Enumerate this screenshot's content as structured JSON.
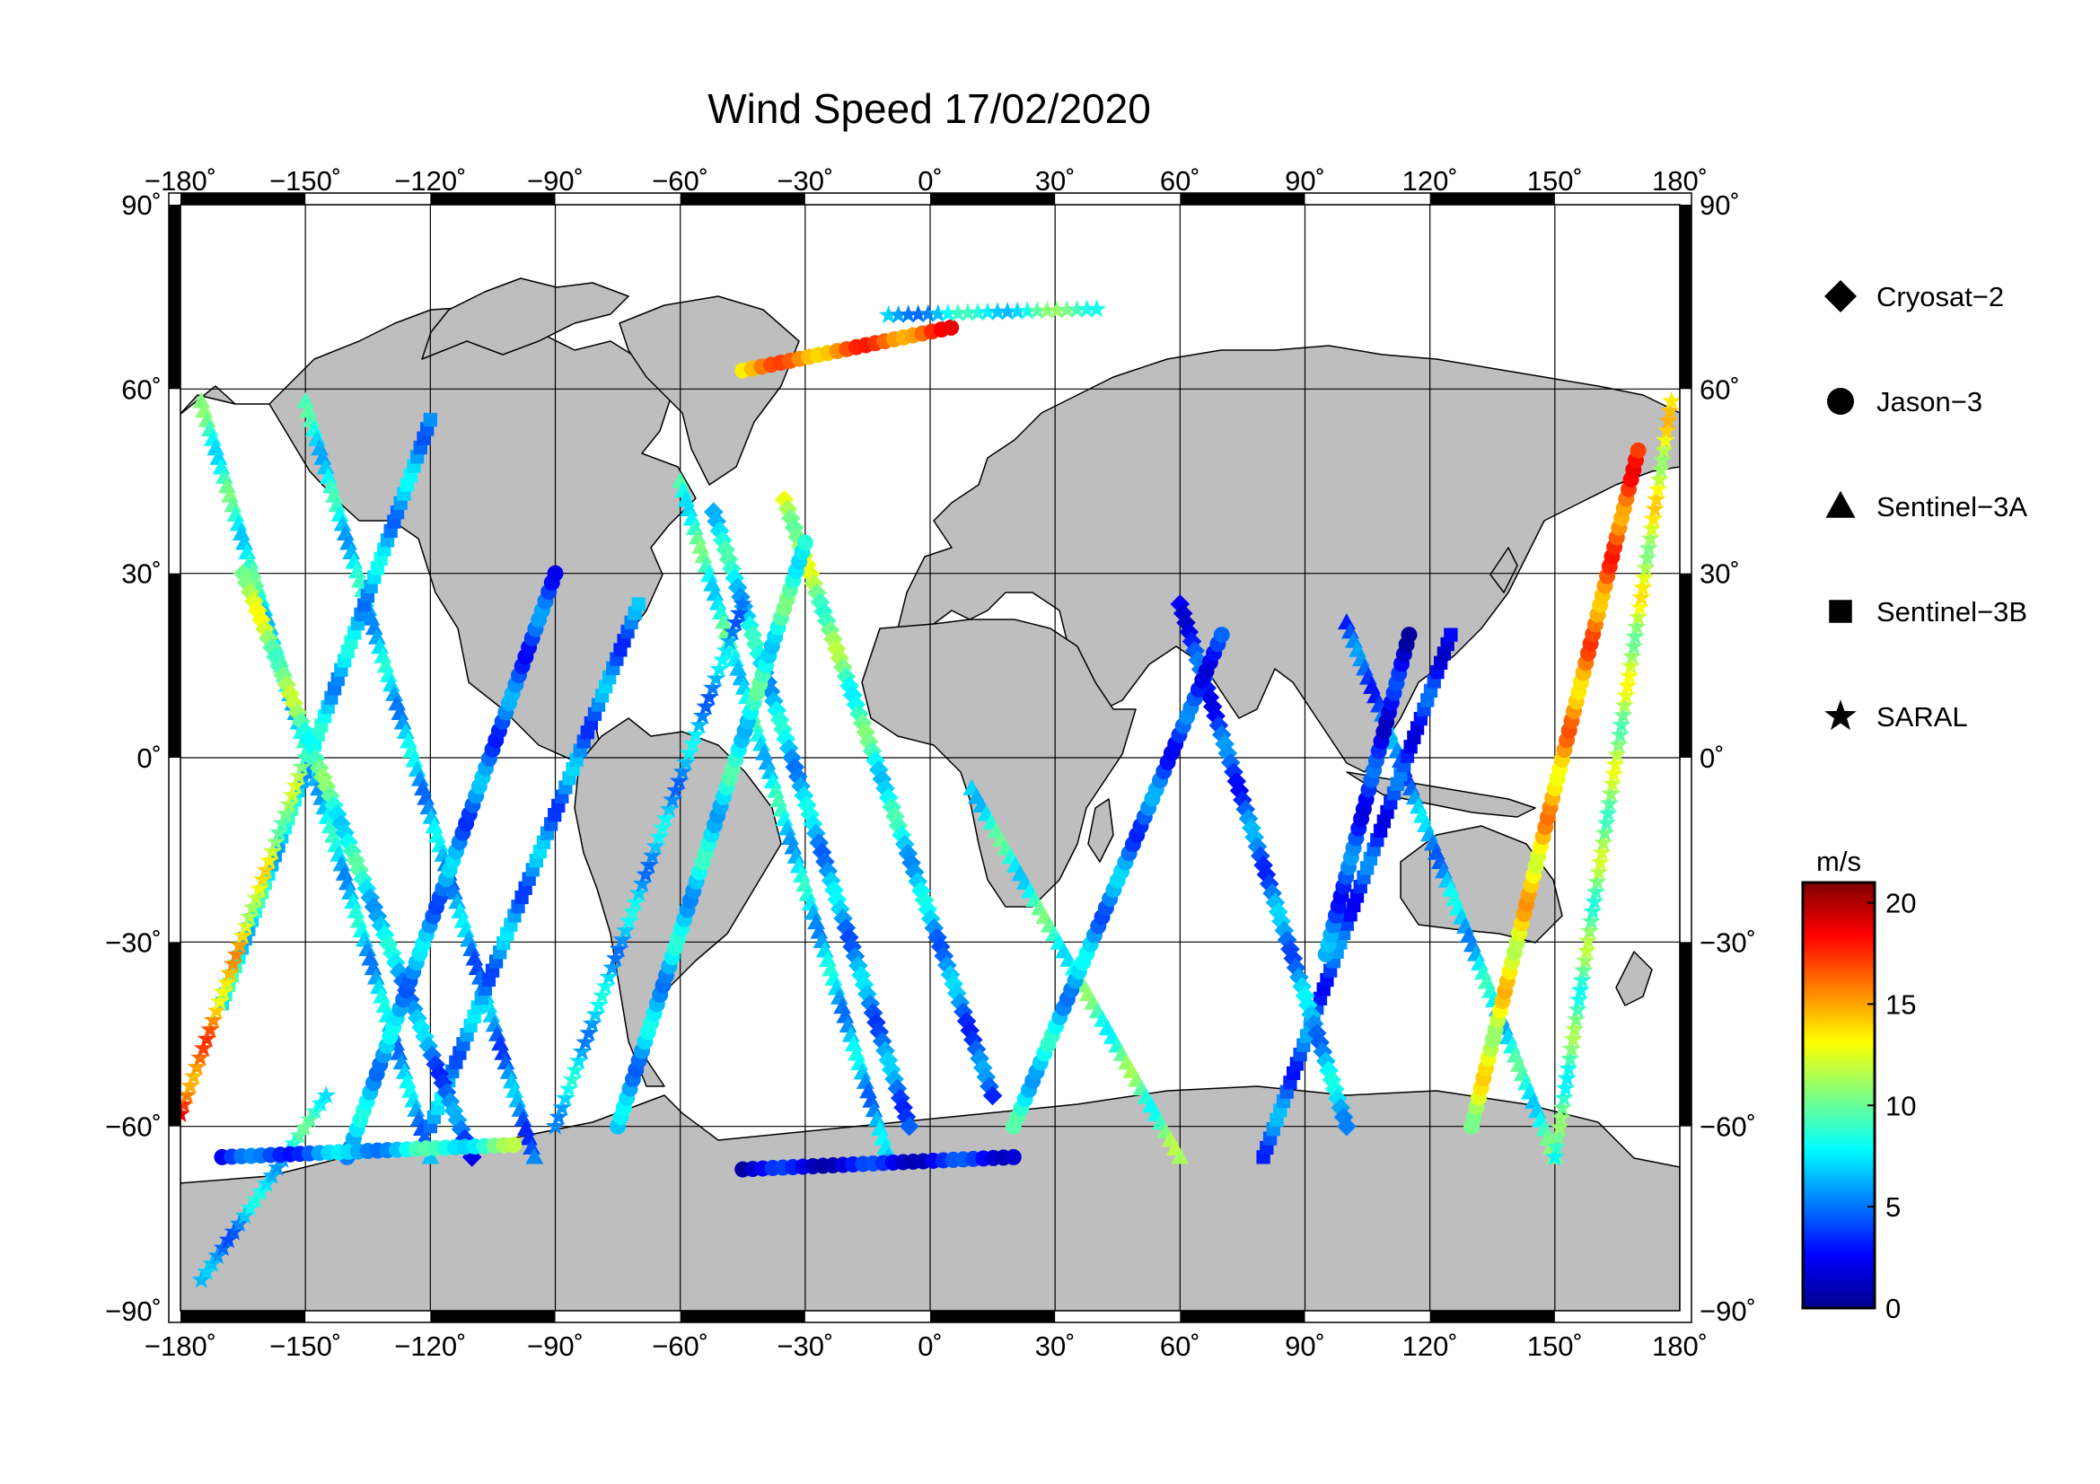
{
  "map": {
    "title": "Wind Speed 17/02/2020",
    "lon_ticks": [
      {
        "value": -180,
        "label": "−180˚"
      },
      {
        "value": -150,
        "label": "−150˚"
      },
      {
        "value": -120,
        "label": "−120˚"
      },
      {
        "value": -90,
        "label": "−90˚"
      },
      {
        "value": -60,
        "label": "−60˚"
      },
      {
        "value": -30,
        "label": "−30˚"
      },
      {
        "value": 0,
        "label": "0˚"
      },
      {
        "value": 30,
        "label": "30˚"
      },
      {
        "value": 60,
        "label": "60˚"
      },
      {
        "value": 90,
        "label": "90˚"
      },
      {
        "value": 120,
        "label": "120˚"
      },
      {
        "value": 150,
        "label": "150˚"
      },
      {
        "value": 180,
        "label": "180˚"
      }
    ],
    "lat_ticks": [
      {
        "value": 90,
        "label": "90˚"
      },
      {
        "value": 60,
        "label": "60˚"
      },
      {
        "value": 30,
        "label": "30˚"
      },
      {
        "value": 0,
        "label": "0˚"
      },
      {
        "value": -30,
        "label": "−30˚"
      },
      {
        "value": -60,
        "label": "−60˚"
      },
      {
        "value": -90,
        "label": "−90˚"
      }
    ],
    "colors": {
      "land": "#bebebe",
      "ocean": "#ffffff",
      "frame": "#000000"
    }
  },
  "legend": {
    "items": [
      {
        "label": "Cryosat−2",
        "marker": "diamond"
      },
      {
        "label": "Jason−3",
        "marker": "circle"
      },
      {
        "label": "Sentinel−3A",
        "marker": "triangle"
      },
      {
        "label": "Sentinel−3B",
        "marker": "square"
      },
      {
        "label": "SARAL",
        "marker": "star"
      }
    ]
  },
  "colorbar": {
    "unit": "m/s",
    "min": 0,
    "max": 21,
    "ticks": [
      {
        "value": 20,
        "label": "20"
      },
      {
        "value": 15,
        "label": "15"
      },
      {
        "value": 10,
        "label": "10"
      },
      {
        "value": 5,
        "label": "5"
      },
      {
        "value": 0,
        "label": "0"
      }
    ],
    "stops": [
      "#00008f",
      "#0000ff",
      "#0080ff",
      "#00ffff",
      "#80ff80",
      "#ffff00",
      "#ff8000",
      "#ff0000",
      "#800000"
    ]
  },
  "chart_data": {
    "type": "scatter",
    "variable": "wind speed",
    "unit": "m/s",
    "x_range": [
      -180,
      180
    ],
    "y_range": [
      -90,
      90
    ],
    "tracks": [
      {
        "series": "Sentinel−3A",
        "marker": "triangle",
        "lon0": -175,
        "lat0": 58,
        "lon1": -120,
        "lat1": -65,
        "v0": 9,
        "v1": 6
      },
      {
        "series": "Sentinel−3A",
        "marker": "triangle",
        "lon0": -150,
        "lat0": 58,
        "lon1": -95,
        "lat1": -65,
        "v0": 8,
        "v1": 5
      },
      {
        "series": "Sentinel−3A",
        "marker": "triangle",
        "lon0": -60,
        "lat0": 45,
        "lon1": -10,
        "lat1": -65,
        "v0": 9,
        "v1": 6
      },
      {
        "series": "Sentinel−3A",
        "marker": "triangle",
        "lon0": 10,
        "lat0": -5,
        "lon1": 60,
        "lat1": -65,
        "v0": 8,
        "v1": 10
      },
      {
        "series": "Sentinel−3A",
        "marker": "triangle",
        "lon0": 100,
        "lat0": 22,
        "lon1": 150,
        "lat1": -65,
        "v0": 4,
        "v1": 9
      },
      {
        "series": "Sentinel−3B",
        "marker": "square",
        "lon0": -170,
        "lat0": -40,
        "lon1": -120,
        "lat1": 55,
        "v0": 8,
        "v1": 6
      },
      {
        "series": "Sentinel−3B",
        "marker": "square",
        "lon0": -120,
        "lat0": -60,
        "lon1": -70,
        "lat1": 25,
        "v0": 6,
        "v1": 5
      },
      {
        "series": "Sentinel−3B",
        "marker": "square",
        "lon0": 80,
        "lat0": -65,
        "lon1": 125,
        "lat1": 20,
        "v0": 5,
        "v1": 3
      },
      {
        "series": "Cryosat−2",
        "marker": "diamond",
        "lon0": -165,
        "lat0": 30,
        "lon1": -110,
        "lat1": -65,
        "v0": 12,
        "v1": 4
      },
      {
        "series": "Cryosat−2",
        "marker": "diamond",
        "lon0": -52,
        "lat0": 40,
        "lon1": -5,
        "lat1": -60,
        "v0": 8,
        "v1": 5
      },
      {
        "series": "Cryosat−2",
        "marker": "diamond",
        "lon0": 60,
        "lat0": 25,
        "lon1": 100,
        "lat1": -60,
        "v0": 3,
        "v1": 7
      },
      {
        "series": "Cryosat−2",
        "marker": "diamond",
        "lon0": -35,
        "lat0": 42,
        "lon1": 15,
        "lat1": -55,
        "v0": 12,
        "v1": 4
      },
      {
        "series": "Jason−3",
        "marker": "circle",
        "lon0": -140,
        "lat0": -65,
        "lon1": -90,
        "lat1": 30,
        "v0": 7,
        "v1": 4
      },
      {
        "series": "Jason−3",
        "marker": "circle",
        "lon0": -75,
        "lat0": -60,
        "lon1": -30,
        "lat1": 35,
        "v0": 6,
        "v1": 9
      },
      {
        "series": "Jason−3",
        "marker": "circle",
        "lon0": 20,
        "lat0": -60,
        "lon1": 70,
        "lat1": 20,
        "v0": 8,
        "v1": 3
      },
      {
        "series": "Jason−3",
        "marker": "circle",
        "lon0": 95,
        "lat0": -32,
        "lon1": 115,
        "lat1": 20,
        "v0": 5,
        "v1": 2
      },
      {
        "series": "Jason−3",
        "marker": "circle",
        "lon0": 130,
        "lat0": -60,
        "lon1": 170,
        "lat1": 50,
        "v0": 12,
        "v1": 17
      },
      {
        "series": "Jason−3",
        "marker": "circle",
        "lon0": -45,
        "lat0": 63,
        "lon1": 5,
        "lat1": 70,
        "v0": 15,
        "v1": 17
      },
      {
        "series": "SARAL",
        "marker": "star",
        "lon0": -180,
        "lat0": -58,
        "lon1": -150,
        "lat1": 0,
        "v0": 17,
        "v1": 10
      },
      {
        "series": "SARAL",
        "marker": "star",
        "lon0": -90,
        "lat0": -60,
        "lon1": -45,
        "lat1": 25,
        "v0": 7,
        "v1": 6
      },
      {
        "series": "SARAL",
        "marker": "star",
        "lon0": -10,
        "lat0": 72,
        "lon1": 40,
        "lat1": 73,
        "v0": 6,
        "v1": 10
      },
      {
        "series": "SARAL",
        "marker": "star",
        "lon0": 150,
        "lat0": -65,
        "lon1": 178,
        "lat1": 58,
        "v0": 9,
        "v1": 13
      },
      {
        "series": "SARAL",
        "marker": "star",
        "lon0": -175,
        "lat0": -85,
        "lon1": -145,
        "lat1": -55,
        "v0": 5,
        "v1": 9
      },
      {
        "series": "Jason−3",
        "marker": "circle",
        "lon0": -45,
        "lat0": -67,
        "lon1": 20,
        "lat1": -65,
        "v0": 2,
        "v1": 3
      },
      {
        "series": "Jason−3",
        "marker": "circle",
        "lon0": -170,
        "lat0": -65,
        "lon1": -100,
        "lat1": -63,
        "v0": 3,
        "v1": 10
      }
    ]
  }
}
